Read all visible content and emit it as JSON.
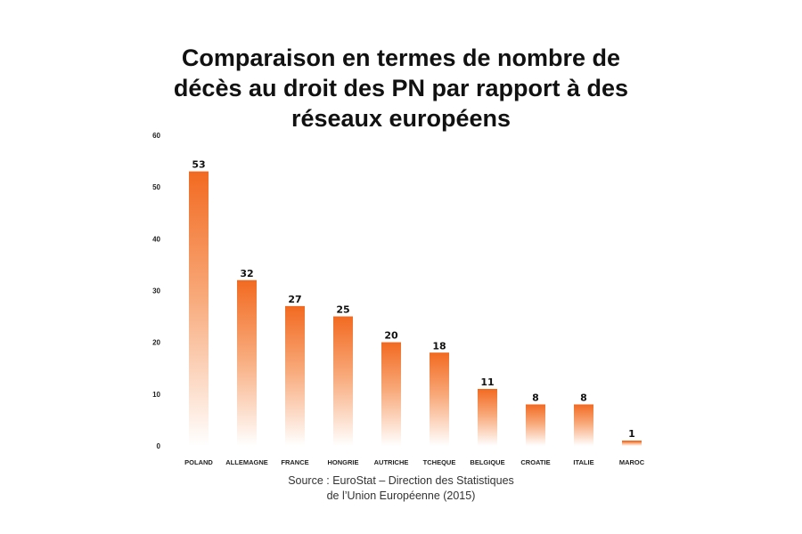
{
  "colors": {
    "bar_top": "#f26a21",
    "bar_bottom": "#ffffff"
  },
  "chart_data": {
    "type": "bar",
    "title_lines": [
      "Comparaison en termes de nombre de",
      "décès au droit des PN par rapport à des",
      "réseaux européens"
    ],
    "categories": [
      "POLAND",
      "ALLEMAGNE",
      "FRANCE",
      "HONGRIE",
      "AUTRICHE",
      "TCHEQUE",
      "BELGIQUE",
      "CROATIE",
      "ITALIE",
      "MAROC"
    ],
    "values": [
      53,
      32,
      27,
      25,
      20,
      18,
      11,
      8,
      8,
      1
    ],
    "ylim": [
      0,
      60
    ],
    "yticks": [
      "0",
      "10",
      "20",
      "30",
      "40",
      "50",
      "60"
    ],
    "grid": false,
    "legend": "none"
  },
  "source": {
    "line1": "Source : EuroStat – Direction des Statistiques",
    "line2": "de l’Union Européenne (2015)"
  }
}
